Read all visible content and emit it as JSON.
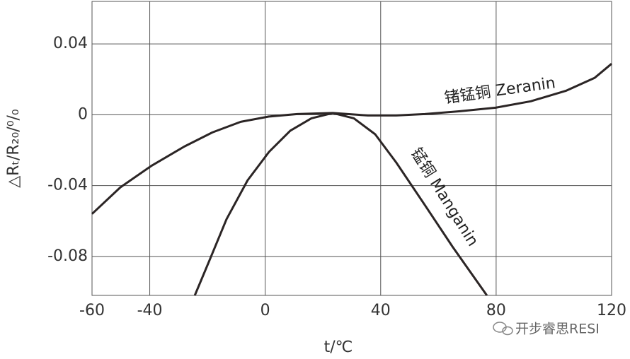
{
  "chart_data": {
    "type": "line",
    "xlabel": "t/℃",
    "ylabel": "△Rₜ/R₂₀/⁰/₀",
    "xlim": [
      -60,
      120
    ],
    "xticks": [
      -60,
      -40,
      0,
      40,
      80,
      120
    ],
    "ylim": [
      -0.102,
      0.064
    ],
    "yticks": [
      -0.08,
      -0.04,
      0,
      0.04
    ],
    "grid": true,
    "series": [
      {
        "name": "锗锰铜 Zeranin",
        "color": "#2b2525",
        "x": [
          -60,
          -50.2,
          -39.6,
          -28.1,
          -18.3,
          -8.5,
          1.3,
          11.1,
          23.4,
          35.6,
          45.4,
          55.3,
          67.5,
          79.8,
          92.0,
          104.3,
          114.1,
          120
        ],
        "values": [
          -0.056,
          -0.041,
          -0.029,
          -0.018,
          -0.01,
          -0.004,
          -0.001,
          0.0004,
          0.001,
          -0.0004,
          -0.0004,
          0.0004,
          0.002,
          0.004,
          0.0076,
          0.0136,
          0.0208,
          0.0288
        ]
      },
      {
        "name": "锰铜 Manganin",
        "color": "#2b2525",
        "x": [
          -24.4,
          -19.5,
          -13.4,
          -6.1,
          1.3,
          8.7,
          16.0,
          23.4,
          30.7,
          38.1,
          45.4,
          55.3,
          65.1,
          76.8
        ],
        "values": [
          -0.102,
          -0.083,
          -0.059,
          -0.037,
          -0.021,
          -0.009,
          -0.002,
          0.001,
          -0.002,
          -0.011,
          -0.027,
          -0.051,
          -0.075,
          -0.102
        ]
      }
    ],
    "watermark": "开步睿思RESI"
  }
}
